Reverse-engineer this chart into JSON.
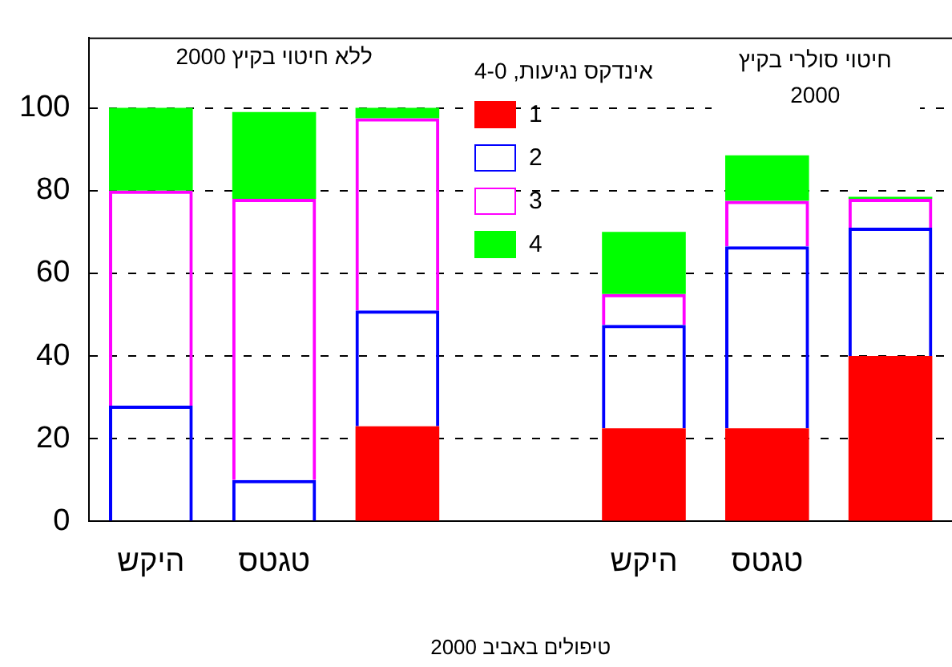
{
  "chart_data": {
    "type": "bar",
    "stacked": true,
    "categories": [
      "היקש",
      "טגטס",
      null,
      null,
      "היקש",
      "טגטס",
      null
    ],
    "xlabel": "טיפולים באביב 2000",
    "legend_title": "אינדקס נגיעות, 4-0",
    "legend": "top",
    "grid": "y",
    "ylim": [
      0,
      117
    ],
    "yticks": [
      0,
      20,
      40,
      60,
      80,
      100
    ],
    "annotations": [
      "ללא חיטוי בקיץ 2000",
      "חיטוי סולרי בקיץ 2000"
    ],
    "series": [
      {
        "name": "1",
        "color": "#ff0000",
        "values": [
          0,
          0,
          23,
          null,
          22.5,
          22.5,
          40
        ]
      },
      {
        "name": "2",
        "color": "#0000ff",
        "values": [
          28,
          10,
          28,
          null,
          25,
          44,
          31
        ]
      },
      {
        "name": "3",
        "color": "#ff00ff",
        "values": [
          52,
          68,
          46.5,
          null,
          7.5,
          11,
          7
        ]
      },
      {
        "name": "4",
        "color": "#00ff00",
        "values": [
          20,
          21,
          2.5,
          null,
          15,
          11,
          0.5
        ]
      }
    ]
  }
}
